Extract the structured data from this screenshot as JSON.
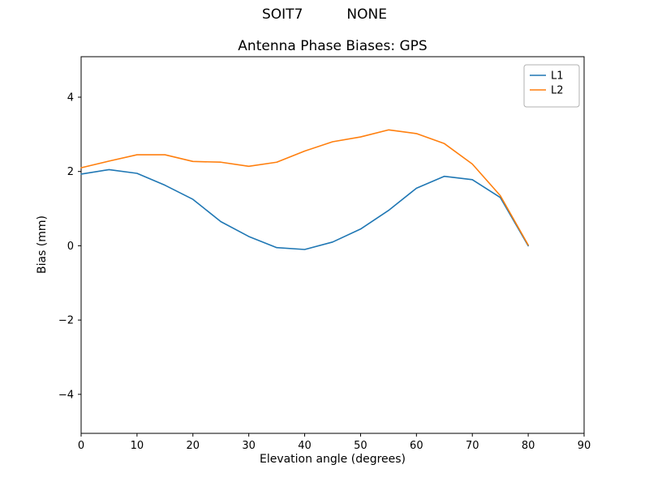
{
  "figure": {
    "suptitle": "SOIT7          NONE",
    "title": "Antenna Phase Biases: GPS",
    "xlabel": "Elevation angle (degrees)",
    "ylabel": "Bias (mm)"
  },
  "chart_data": {
    "type": "line",
    "title": "Antenna Phase Biases: GPS",
    "xlabel": "Elevation angle (degrees)",
    "ylabel": "Bias (mm)",
    "xlim": [
      0,
      90
    ],
    "ylim": [
      -5.05,
      5.09
    ],
    "xticks": [
      0,
      10,
      20,
      30,
      40,
      50,
      60,
      70,
      80,
      90
    ],
    "yticks": [
      -4,
      -2,
      0,
      2,
      4
    ],
    "grid": false,
    "legend_position": "upper right",
    "x": [
      0,
      5,
      10,
      15,
      20,
      25,
      30,
      35,
      40,
      45,
      50,
      55,
      60,
      65,
      70,
      75,
      80
    ],
    "series": [
      {
        "name": "L1",
        "color": "#1f77b4",
        "values": [
          1.93,
          2.05,
          1.95,
          1.63,
          1.25,
          0.65,
          0.25,
          -0.05,
          -0.1,
          0.1,
          0.45,
          0.95,
          1.55,
          1.87,
          1.78,
          1.3,
          0.0
        ]
      },
      {
        "name": "L2",
        "color": "#ff7f0e",
        "values": [
          2.1,
          2.28,
          2.45,
          2.45,
          2.27,
          2.25,
          2.14,
          2.25,
          2.55,
          2.8,
          2.93,
          3.12,
          3.02,
          2.75,
          2.2,
          1.35,
          0.02
        ]
      }
    ],
    "axis_color": "#000000",
    "legend_border_color": "#b0b0b0"
  }
}
